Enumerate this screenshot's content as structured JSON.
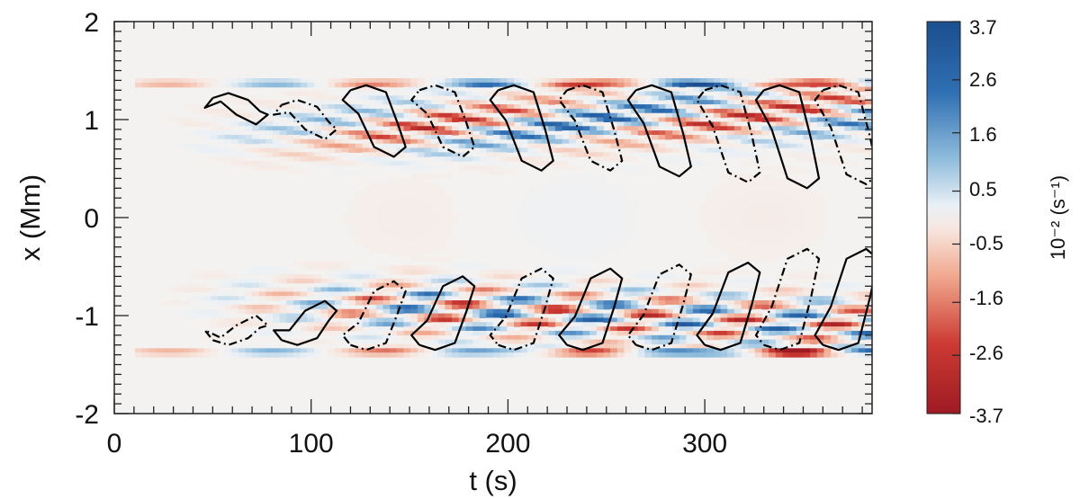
{
  "chart_data": {
    "type": "heatmap",
    "title": "",
    "xlabel": "t (s)",
    "ylabel": "x (Mm)",
    "xlim": [
      0,
      385
    ],
    "ylim": [
      -2,
      2
    ],
    "x_ticks": [
      "0",
      "100",
      "200",
      "300"
    ],
    "y_ticks": [
      "2",
      "1",
      "0",
      "-1",
      "-2"
    ],
    "colorbar": {
      "label": "10⁻² (s⁻¹)",
      "range": [
        -3.7,
        3.7
      ],
      "ticks": [
        "3.7",
        "2.6",
        "1.6",
        "0.5",
        "-0.5",
        "-1.6",
        "-2.6",
        "-3.7"
      ],
      "colormap": "red-white-blue (diverging)",
      "colors": {
        "high": "#1b4f8f",
        "mid": "#f4f2f0",
        "low": "#9e1a22"
      }
    },
    "features": {
      "upper_band_x_range": [
        0.3,
        1.4
      ],
      "lower_band_x_range": [
        -1.4,
        -0.3
      ],
      "boundary_x": [
        1.38,
        -1.38
      ],
      "contour_styles": [
        "solid",
        "dash-dot"
      ]
    },
    "upper_contours": [
      {
        "style": "solid",
        "t": 50,
        "x0": 1.22,
        "x1": 0.95
      },
      {
        "style": "dashdot",
        "t": 85,
        "x0": 1.15,
        "x1": 0.8
      },
      {
        "style": "solid",
        "t": 120,
        "x0": 1.3,
        "x1": 0.62
      },
      {
        "style": "dashdot",
        "t": 155,
        "x0": 1.3,
        "x1": 0.62
      },
      {
        "style": "solid",
        "t": 195,
        "x0": 1.3,
        "x1": 0.48
      },
      {
        "style": "dashdot",
        "t": 230,
        "x0": 1.3,
        "x1": 0.48
      },
      {
        "style": "solid",
        "t": 265,
        "x0": 1.3,
        "x1": 0.42
      },
      {
        "style": "dashdot",
        "t": 300,
        "x0": 1.3,
        "x1": 0.36
      },
      {
        "style": "solid",
        "t": 330,
        "x0": 1.3,
        "x1": 0.3
      },
      {
        "style": "dashdot",
        "t": 360,
        "x0": 1.3,
        "x1": 0.34
      }
    ],
    "lower_contours": [
      {
        "style": "dashdot",
        "t": 50,
        "x0": -1.25,
        "x1": -1.0
      },
      {
        "style": "solid",
        "t": 85,
        "x0": -1.25,
        "x1": -0.85
      },
      {
        "style": "dashdot",
        "t": 120,
        "x0": -1.3,
        "x1": -0.65
      },
      {
        "style": "solid",
        "t": 155,
        "x0": -1.3,
        "x1": -0.6
      },
      {
        "style": "dashdot",
        "t": 195,
        "x0": -1.3,
        "x1": -0.52
      },
      {
        "style": "solid",
        "t": 230,
        "x0": -1.3,
        "x1": -0.52
      },
      {
        "style": "dashdot",
        "t": 265,
        "x0": -1.3,
        "x1": -0.48
      },
      {
        "style": "solid",
        "t": 300,
        "x0": -1.3,
        "x1": -0.46
      },
      {
        "style": "dashdot",
        "t": 330,
        "x0": -1.3,
        "x1": -0.32
      },
      {
        "style": "solid",
        "t": 360,
        "x0": -1.3,
        "x1": -0.32
      }
    ]
  }
}
